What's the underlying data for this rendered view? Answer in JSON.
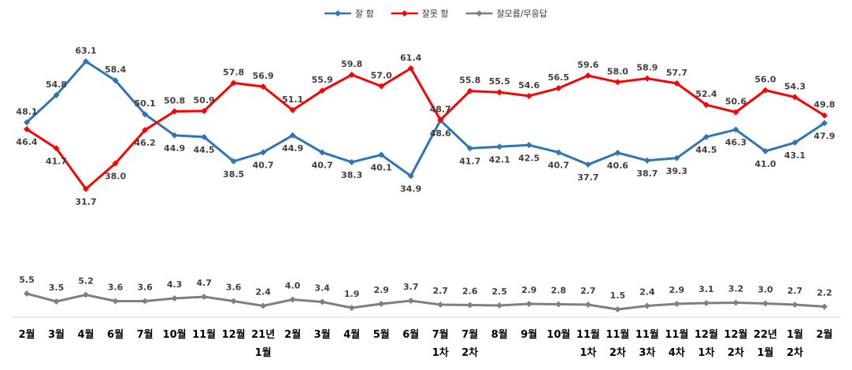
{
  "chart_data": {
    "type": "line",
    "categories": [
      [
        "2월"
      ],
      [
        "3월"
      ],
      [
        "4월"
      ],
      [
        "6월"
      ],
      [
        "7월"
      ],
      [
        "10월"
      ],
      [
        "11월"
      ],
      [
        "12월"
      ],
      [
        "21년",
        "1월"
      ],
      [
        "2월"
      ],
      [
        "3월"
      ],
      [
        "4월"
      ],
      [
        "5월"
      ],
      [
        "6월"
      ],
      [
        "7월",
        "1차"
      ],
      [
        "7월",
        "2차"
      ],
      [
        "8월"
      ],
      [
        "9월"
      ],
      [
        "10월"
      ],
      [
        "11월",
        "1차"
      ],
      [
        "11월",
        "2차"
      ],
      [
        "11월",
        "3차"
      ],
      [
        "11월",
        "4차"
      ],
      [
        "12월",
        "1차"
      ],
      [
        "12월",
        "2차"
      ],
      [
        "22년",
        "1월"
      ],
      [
        "1월",
        "2차"
      ],
      [
        "2월"
      ]
    ],
    "series": [
      {
        "name": "잘 함",
        "color": "#2E75B6",
        "values": [
          48.1,
          54.8,
          63.1,
          58.4,
          50.1,
          44.9,
          44.5,
          38.5,
          40.7,
          44.9,
          40.7,
          38.3,
          40.1,
          34.9,
          48.6,
          41.7,
          42.1,
          42.5,
          40.7,
          37.7,
          40.6,
          38.7,
          39.3,
          44.5,
          46.3,
          41.0,
          43.1,
          47.9
        ]
      },
      {
        "name": "잘못 함",
        "color": "#FF0000",
        "values": [
          46.4,
          41.7,
          31.7,
          38.0,
          46.2,
          50.8,
          50.9,
          57.8,
          56.9,
          51.1,
          55.9,
          59.8,
          57.0,
          61.4,
          48.7,
          55.8,
          55.5,
          54.6,
          56.5,
          59.6,
          58.0,
          58.9,
          57.7,
          52.4,
          50.6,
          56.0,
          54.3,
          49.8
        ]
      },
      {
        "name": "잘모름/무응답",
        "color": "#7F7F7F",
        "values": [
          5.5,
          3.5,
          5.2,
          3.6,
          3.6,
          4.3,
          4.7,
          3.6,
          2.4,
          4.0,
          3.4,
          1.9,
          2.9,
          3.7,
          2.7,
          2.6,
          2.5,
          2.9,
          2.8,
          2.7,
          1.5,
          2.4,
          2.9,
          3.1,
          3.2,
          3.0,
          2.7,
          2.2
        ]
      }
    ],
    "grid": false,
    "legend_position": "top-center"
  }
}
